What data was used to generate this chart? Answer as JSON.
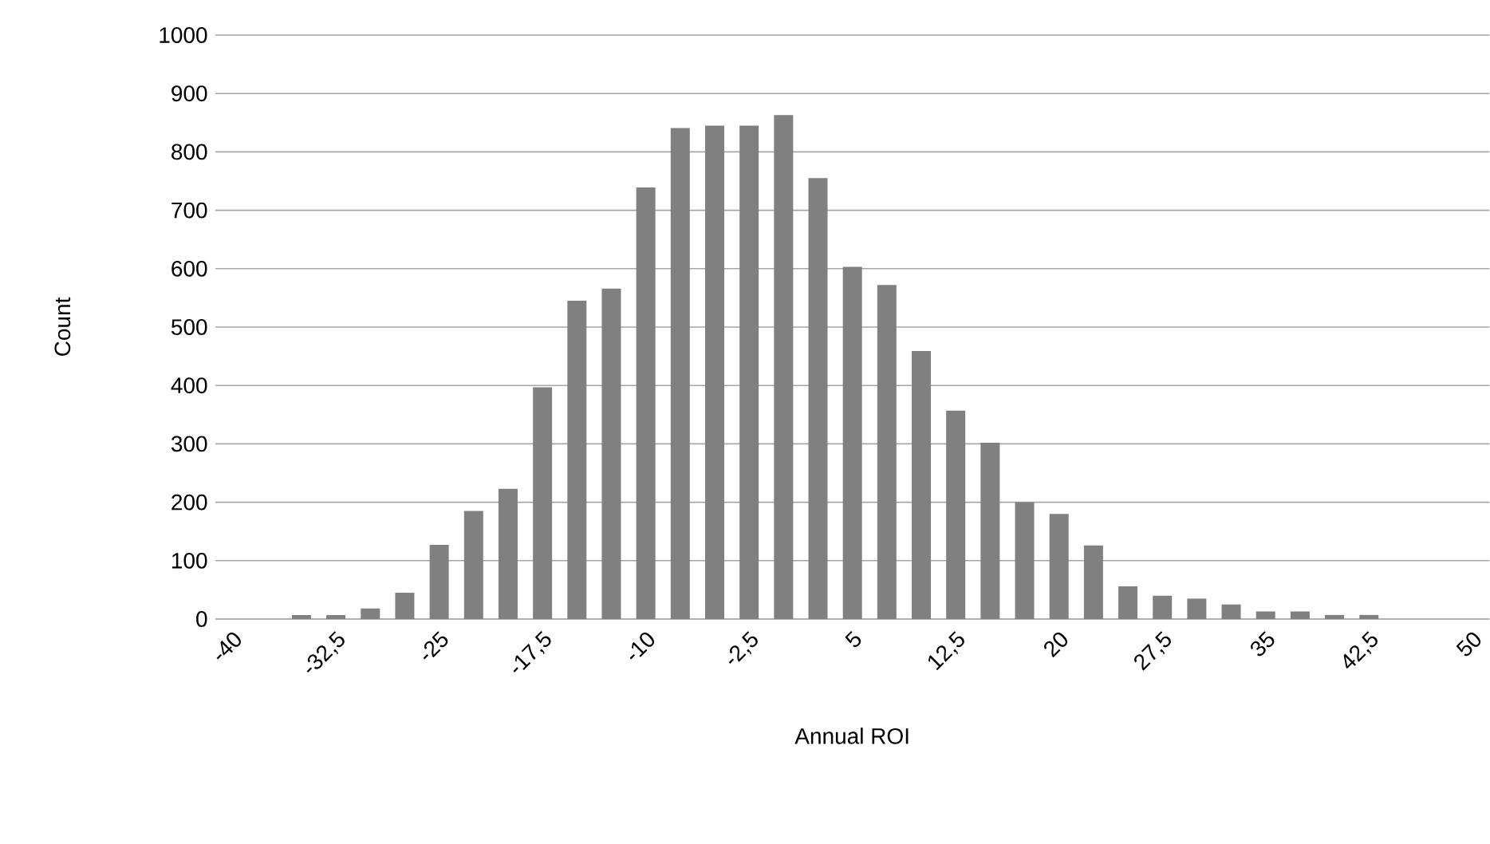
{
  "chart_data": {
    "type": "bar",
    "xlabel": "Annual ROI",
    "ylabel": "Count",
    "categories": [
      "-40",
      null,
      null,
      "-32,5",
      null,
      null,
      "-25",
      null,
      null,
      "-17,5",
      null,
      null,
      "-10",
      null,
      null,
      "-2,5",
      null,
      null,
      "5",
      null,
      null,
      "12,5",
      null,
      null,
      "20",
      null,
      null,
      "27,5",
      null,
      null,
      "35",
      null,
      null,
      "42,5",
      null,
      null,
      "50"
    ],
    "values": [
      0,
      0,
      7,
      7,
      18,
      45,
      127,
      185,
      223,
      397,
      545,
      566,
      739,
      841,
      845,
      845,
      863,
      755,
      603,
      572,
      459,
      357,
      302,
      200,
      180,
      126,
      56,
      40,
      35,
      25,
      13,
      13,
      7,
      7,
      0,
      0,
      0
    ],
    "color": "#808080",
    "ylim": [
      0,
      1000
    ],
    "yticks": [
      0,
      100,
      200,
      300,
      400,
      500,
      600,
      700,
      800,
      900,
      1000
    ],
    "grid": "y"
  }
}
